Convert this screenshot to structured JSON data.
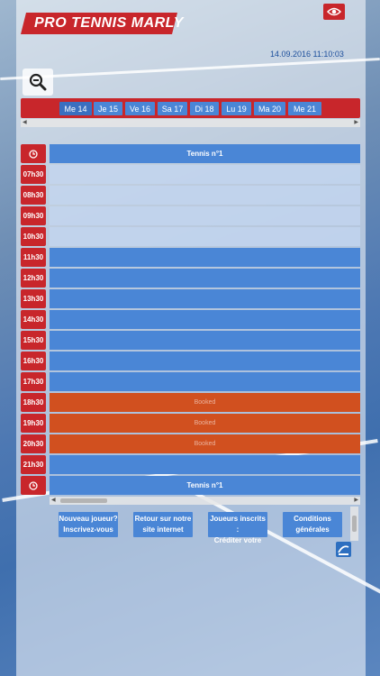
{
  "header": {
    "logo_text": "PRO TENNIS MARLY",
    "datetime": "14.09.2016 11:10:03",
    "eye_icon": "eye-icon",
    "zoom_icon": "zoom-out-icon"
  },
  "date_tabs": [
    "Me 14",
    "Je 15",
    "Ve 16",
    "Sa 17",
    "Di 18",
    "Lu 19",
    "Ma 20",
    "Me 21"
  ],
  "schedule": {
    "court_name": "Tennis n°1",
    "clock_icon": "clock-icon",
    "times": [
      "07h30",
      "08h30",
      "09h30",
      "10h30",
      "11h30",
      "12h30",
      "13h30",
      "14h30",
      "15h30",
      "16h30",
      "17h30",
      "18h30",
      "19h30",
      "20h30",
      "21h30"
    ],
    "slot_texts": [
      "",
      "",
      "",
      "",
      "",
      "",
      "",
      "",
      "",
      "",
      "",
      "Booked",
      "Booked",
      "Booked",
      ""
    ]
  },
  "footer": {
    "btn_new_line1": "Nouveau joueur?",
    "btn_new_line2": "Inscrivez-vous",
    "btn_back_line1": "Retour sur notre",
    "btn_back_line2": "site internet",
    "btn_players_line1": "Joueurs inscrits :",
    "btn_players_line2": "Créditer votre",
    "btn_conditions_line1": "Conditions",
    "btn_conditions_line2": "générales",
    "info_icon": "info-icon"
  },
  "colors": {
    "brand_red": "#c8262b",
    "slot_blue": "#4a86d6",
    "booked_orange": "#d1501f"
  }
}
